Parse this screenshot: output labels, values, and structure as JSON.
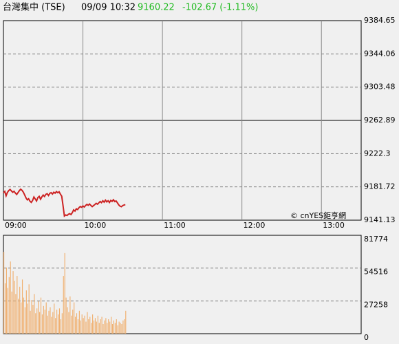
{
  "header": {
    "name": "台灣集中 (TSE)",
    "time": "09/09 10:32",
    "price": "9160.22",
    "change": "-102.67 (-1.11%)"
  },
  "chart_data": [
    {
      "type": "line",
      "annotation": "© cnYES鉅亨網",
      "xlim": [
        0,
        270
      ],
      "xticks": [
        {
          "value": 0,
          "label": "09:00"
        },
        {
          "value": 60,
          "label": "10:00"
        },
        {
          "value": 120,
          "label": "11:00"
        },
        {
          "value": 180,
          "label": "12:00"
        },
        {
          "value": 240,
          "label": "13:00"
        }
      ],
      "ylim": [
        9141.13,
        9384.65
      ],
      "yticks": [
        9141.13,
        9181.72,
        9222.3,
        9262.89,
        9303.48,
        9344.06,
        9384.65
      ],
      "reference_line": 9262.89,
      "grid": true,
      "x": [
        0,
        1,
        2,
        3,
        4,
        5,
        6,
        7,
        8,
        9,
        10,
        11,
        12,
        13,
        14,
        15,
        16,
        17,
        18,
        19,
        20,
        21,
        22,
        23,
        24,
        25,
        26,
        27,
        28,
        29,
        30,
        31,
        32,
        33,
        34,
        35,
        36,
        37,
        38,
        39,
        40,
        41,
        42,
        43,
        44,
        45,
        46,
        47,
        48,
        49,
        50,
        51,
        52,
        53,
        54,
        55,
        56,
        57,
        58,
        59,
        60,
        61,
        62,
        63,
        64,
        65,
        66,
        67,
        68,
        69,
        70,
        71,
        72,
        73,
        74,
        75,
        76,
        77,
        78,
        79,
        80,
        81,
        82,
        83,
        84,
        85,
        86,
        87,
        88,
        89,
        90,
        91,
        92
      ],
      "series": [
        {
          "color": "#cc2222",
          "values": [
            9174.5,
            9176.2,
            9170.8,
            9175.0,
            9177.3,
            9178.6,
            9176.9,
            9175.1,
            9176.4,
            9174.2,
            9172.5,
            9174.8,
            9177.1,
            9178.9,
            9177.6,
            9175.3,
            9172.0,
            9168.4,
            9165.9,
            9167.2,
            9164.3,
            9162.8,
            9165.1,
            9169.4,
            9167.0,
            9164.5,
            9168.8,
            9170.2,
            9166.7,
            9169.5,
            9171.8,
            9170.0,
            9172.6,
            9173.4,
            9171.2,
            9173.9,
            9174.7,
            9173.0,
            9175.2,
            9174.1,
            9176.0,
            9174.6,
            9175.8,
            9172.9,
            9170.3,
            9158.6,
            9146.2,
            9147.5,
            9146.8,
            9148.3,
            9149.1,
            9148.0,
            9150.4,
            9153.7,
            9152.2,
            9155.0,
            9154.1,
            9156.3,
            9157.8,
            9156.9,
            9158.5,
            9157.2,
            9159.0,
            9160.4,
            9159.3,
            9160.8,
            9159.1,
            9157.6,
            9158.9,
            9160.2,
            9161.7,
            9160.6,
            9162.3,
            9163.9,
            9162.5,
            9164.8,
            9163.1,
            9165.6,
            9163.4,
            9164.9,
            9162.7,
            9165.2,
            9164.0,
            9166.1,
            9163.8,
            9164.6,
            9162.4,
            9159.8,
            9158.2,
            9157.5,
            9158.9,
            9159.6,
            9160.22
          ]
        }
      ]
    },
    {
      "type": "bar",
      "xlim": [
        0,
        270
      ],
      "ylim": [
        0,
        81774
      ],
      "yticks": [
        0,
        27258,
        54516,
        81774
      ],
      "grid": true,
      "x": [
        0,
        1,
        2,
        3,
        4,
        5,
        6,
        7,
        8,
        9,
        10,
        11,
        12,
        13,
        14,
        15,
        16,
        17,
        18,
        19,
        20,
        21,
        22,
        23,
        24,
        25,
        26,
        27,
        28,
        29,
        30,
        31,
        32,
        33,
        34,
        35,
        36,
        37,
        38,
        39,
        40,
        41,
        42,
        43,
        44,
        45,
        46,
        47,
        48,
        49,
        50,
        51,
        52,
        53,
        54,
        55,
        56,
        57,
        58,
        59,
        60,
        61,
        62,
        63,
        64,
        65,
        66,
        67,
        68,
        69,
        70,
        71,
        72,
        73,
        74,
        75,
        76,
        77,
        78,
        79,
        80,
        81,
        82,
        83,
        84,
        85,
        86,
        87,
        88,
        89,
        90,
        91,
        92
      ],
      "series": [
        {
          "color": "#f0b070",
          "values": [
            68000,
            42000,
            55000,
            38000,
            47000,
            60000,
            35000,
            52000,
            44000,
            33000,
            48000,
            29000,
            39000,
            26000,
            45000,
            30000,
            22000,
            36000,
            25000,
            41000,
            19000,
            28000,
            24000,
            33000,
            17000,
            21000,
            27000,
            18000,
            30000,
            16000,
            23000,
            20000,
            26000,
            15000,
            19000,
            22000,
            14000,
            18000,
            25000,
            13000,
            20000,
            16000,
            21000,
            12000,
            17000,
            48000,
            67000,
            30000,
            22000,
            18000,
            31000,
            15000,
            20000,
            26000,
            14000,
            17000,
            12000,
            19000,
            11000,
            16000,
            13000,
            15000,
            10000,
            18000,
            12000,
            14000,
            9000,
            16000,
            11000,
            13000,
            10000,
            15000,
            9000,
            12000,
            14000,
            8000,
            11000,
            13000,
            9000,
            12000,
            10000,
            14000,
            8000,
            11000,
            9000,
            12000,
            7000,
            10000,
            9000,
            8000,
            11000,
            12000,
            19000
          ]
        }
      ]
    }
  ]
}
